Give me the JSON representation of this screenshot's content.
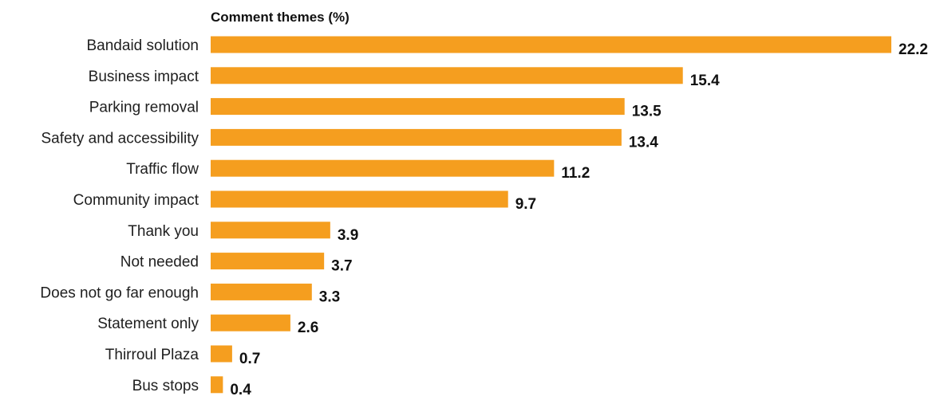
{
  "chart_data": {
    "type": "bar",
    "orientation": "horizontal",
    "title": "Comment themes (%)",
    "categories": [
      "Bandaid solution",
      "Business impact",
      "Parking removal",
      "Safety and accessibility",
      "Traffic flow",
      "Community impact",
      "Thank you",
      "Not needed",
      "Does not go far enough",
      "Statement only",
      "Thirroul Plaza",
      "Bus stops"
    ],
    "values": [
      22.2,
      15.4,
      13.5,
      13.4,
      11.2,
      9.7,
      3.9,
      3.7,
      3.3,
      2.6,
      0.7,
      0.4
    ],
    "value_labels": [
      "22.2",
      "15.4",
      "13.5",
      "13.4",
      "11.2",
      "9.7",
      "3.9",
      "3.7",
      "3.3",
      "2.6",
      "0.7",
      "0.4"
    ],
    "xlim": [
      0,
      22.2
    ],
    "grid": false,
    "bar_color": "#F59E1F"
  }
}
